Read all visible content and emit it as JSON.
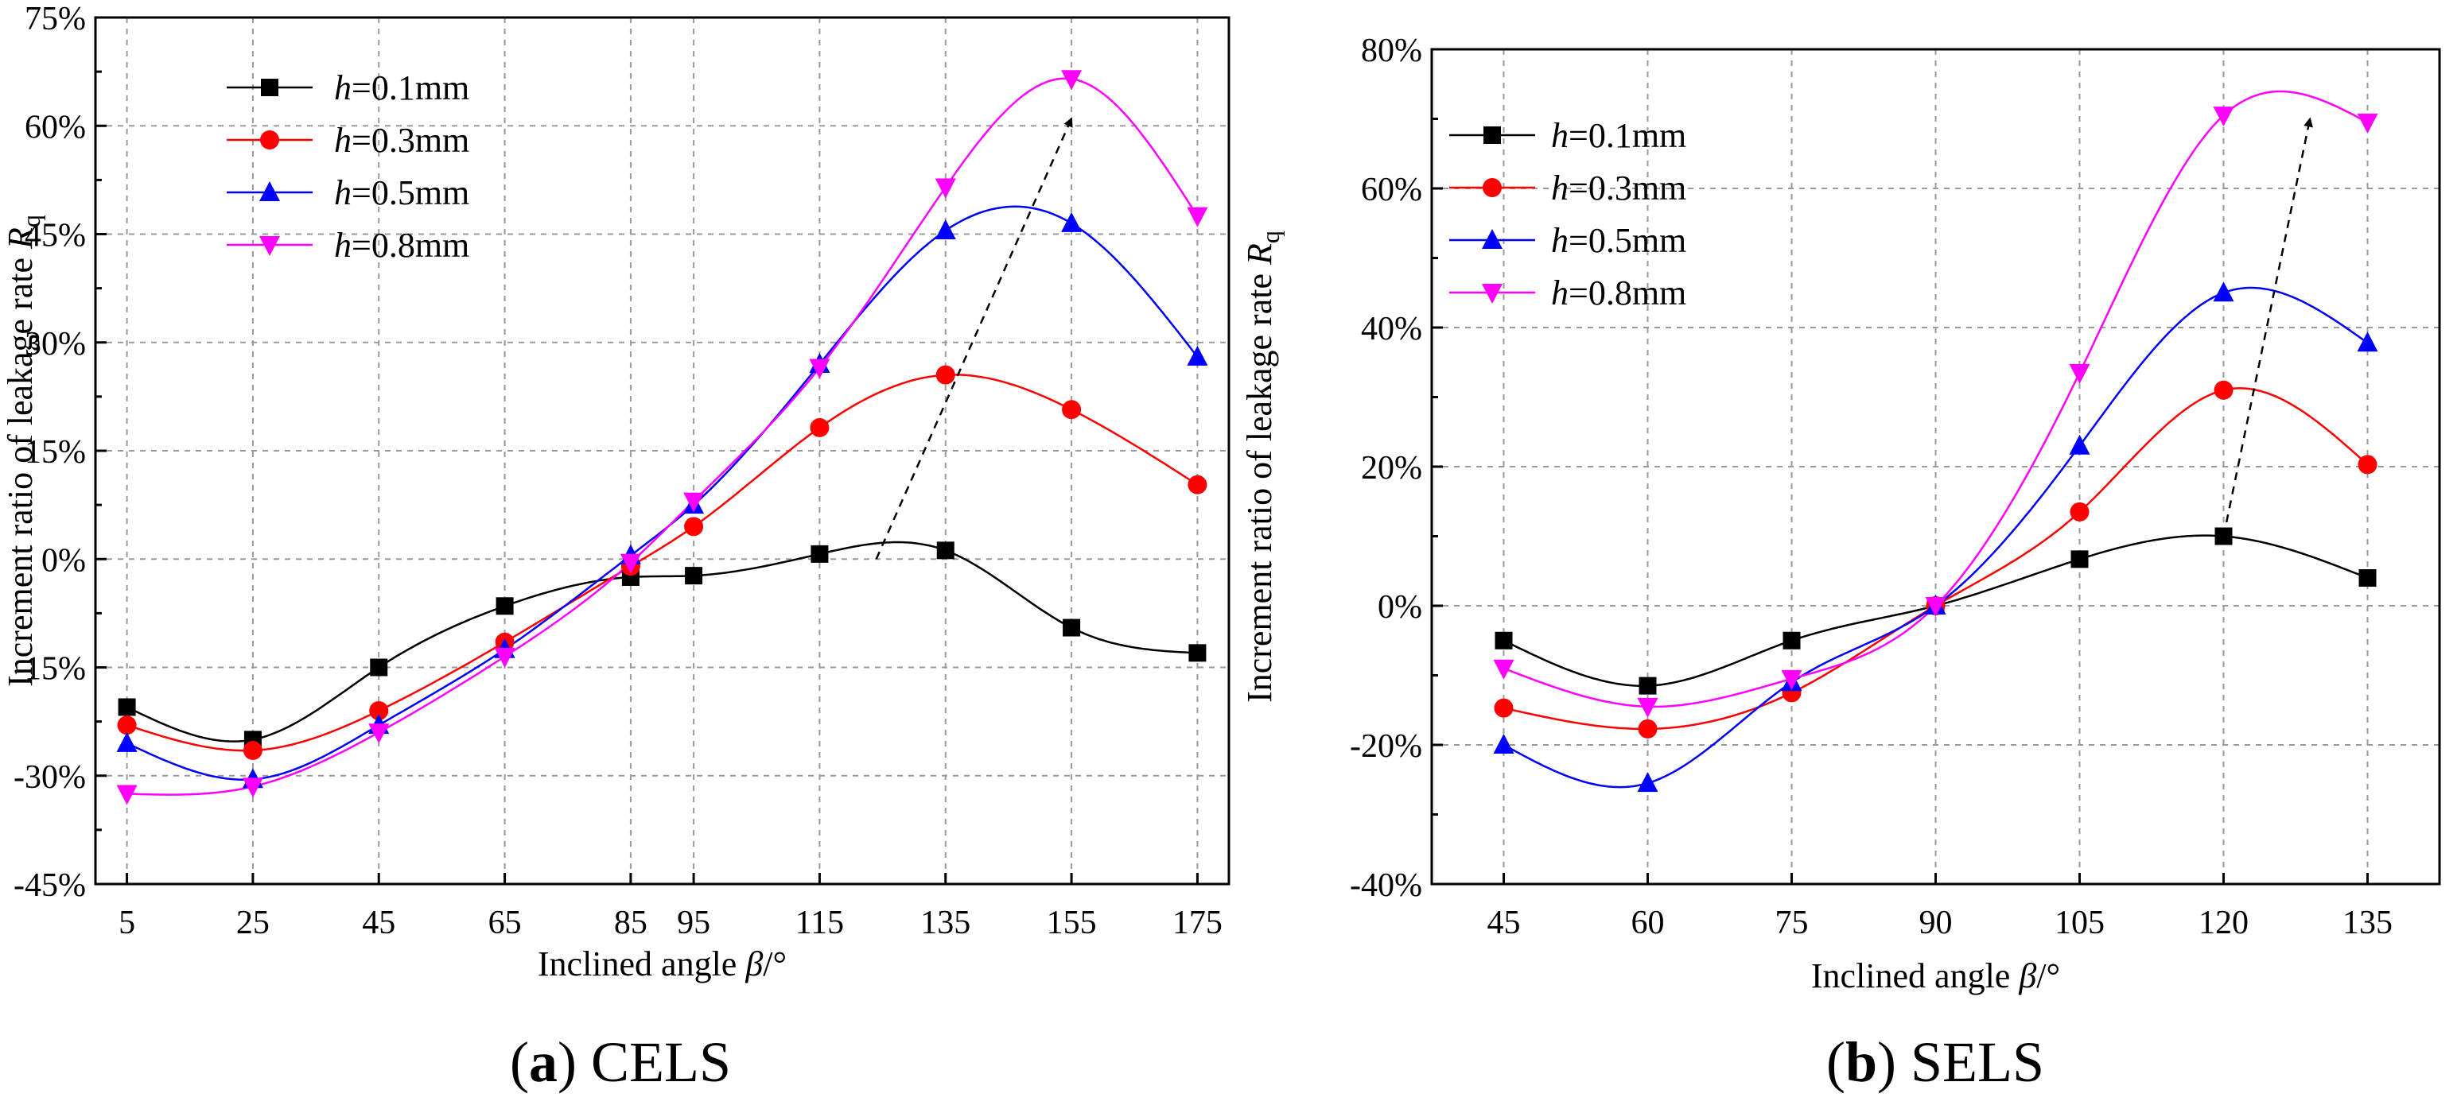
{
  "chart_data": [
    {
      "type": "scatter",
      "panel": "a",
      "caption_letter": "a",
      "caption_text": "CELS",
      "xlabel": "Inclined angle β/°",
      "ylabel": "Increment ratio of leakage rate Rq",
      "xlim": [
        0,
        180
      ],
      "ylim": [
        -45,
        75
      ],
      "xticks": [
        5,
        25,
        45,
        65,
        85,
        95,
        115,
        135,
        155,
        175
      ],
      "yticks": [
        -45,
        -30,
        -15,
        0,
        15,
        30,
        45,
        60,
        75
      ],
      "ytick_labels": [
        "-45%",
        "-30%",
        "-15%",
        "0%",
        "15%",
        "30%",
        "45%",
        "60%",
        "75%"
      ],
      "x": [
        5,
        25,
        45,
        65,
        85,
        95,
        115,
        135,
        155,
        175
      ],
      "series": [
        {
          "name": "h=0.1mm",
          "label_italic": "h",
          "label_rest": "=0.1mm",
          "color": "#000000",
          "marker": "square",
          "values": [
            -20.5,
            -25,
            -15,
            -6.5,
            -2.5,
            -2.3,
            0.7,
            1.2,
            -9.5,
            -13
          ]
        },
        {
          "name": "h=0.3mm",
          "label_italic": "h",
          "label_rest": "=0.3mm",
          "color": "#ff0000",
          "marker": "circle",
          "values": [
            -23,
            -26.5,
            -21,
            -11.5,
            -1,
            4.5,
            18.2,
            25.5,
            20.7,
            10.3
          ]
        },
        {
          "name": "h=0.5mm",
          "label_italic": "h",
          "label_rest": "=0.5mm",
          "color": "#0000ff",
          "marker": "triangle-up",
          "values": [
            -25.5,
            -30.5,
            -23,
            -12.5,
            0.5,
            7.5,
            27,
            45.5,
            46.5,
            28
          ]
        },
        {
          "name": "h=0.8mm",
          "label_italic": "h",
          "label_rest": "=0.8mm",
          "color": "#ff00ff",
          "marker": "triangle-down",
          "values": [
            -32.5,
            -31.5,
            -24,
            -13.5,
            -0.5,
            8,
            26.5,
            51.5,
            66.5,
            47.5
          ]
        }
      ],
      "arrow": {
        "from": [
          124,
          0
        ],
        "to": [
          155,
          61
        ]
      }
    },
    {
      "type": "scatter",
      "panel": "b",
      "caption_letter": "b",
      "caption_text": "SELS",
      "xlabel": "Inclined angle β/°",
      "ylabel": "Increment ratio of leakage rate Rq",
      "xlim": [
        37.5,
        142.5
      ],
      "ylim": [
        -40,
        80
      ],
      "xticks": [
        45,
        60,
        75,
        90,
        105,
        120,
        135
      ],
      "yticks": [
        -40,
        -20,
        0,
        20,
        40,
        60,
        80
      ],
      "ytick_labels": [
        "-40%",
        "-20%",
        "0%",
        "20%",
        "40%",
        "60%",
        "80%"
      ],
      "x": [
        45,
        60,
        75,
        90,
        105,
        120,
        135
      ],
      "series": [
        {
          "name": "h=0.1mm",
          "label_italic": "h",
          "label_rest": "=0.1mm",
          "color": "#000000",
          "marker": "square",
          "values": [
            -5,
            -11.5,
            -5,
            0,
            6.7,
            10,
            4
          ]
        },
        {
          "name": "h=0.3mm",
          "label_italic": "h",
          "label_rest": "=0.3mm",
          "color": "#ff0000",
          "marker": "circle",
          "values": [
            -14.7,
            -17.7,
            -12.5,
            0,
            13.5,
            31,
            20.3
          ]
        },
        {
          "name": "h=0.5mm",
          "label_italic": "h",
          "label_rest": "=0.5mm",
          "color": "#0000ff",
          "marker": "triangle-up",
          "values": [
            -20,
            -25.5,
            -11,
            0,
            23,
            45,
            37.8
          ]
        },
        {
          "name": "h=0.8mm",
          "label_italic": "h",
          "label_rest": "=0.8mm",
          "color": "#ff00ff",
          "marker": "triangle-down",
          "values": [
            -9,
            -14.5,
            -10.5,
            0,
            33.5,
            70.5,
            69.5
          ]
        }
      ],
      "arrow": {
        "from": [
          120,
          10
        ],
        "to": [
          129,
          70
        ]
      }
    }
  ]
}
